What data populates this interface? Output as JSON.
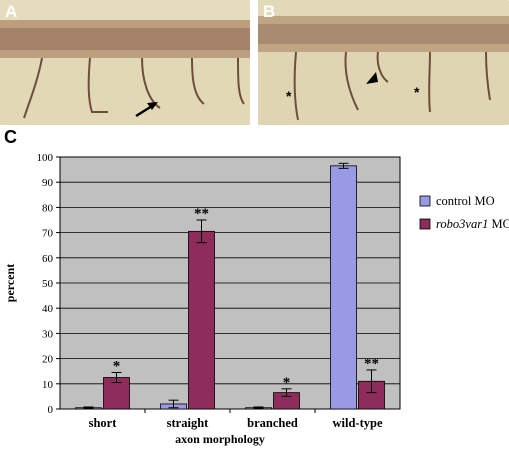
{
  "panels": {
    "a": {
      "letter": "A"
    },
    "b": {
      "letter": "B",
      "annotations": [
        "*",
        "*"
      ]
    },
    "c": {
      "letter": "C"
    }
  },
  "colors": {
    "control": "#9999e6",
    "morphant": "#8e2c5c",
    "plot_background": "#c0c0c0",
    "photo_background": "#dbd1ac"
  },
  "chart_data": {
    "type": "bar",
    "categories": [
      "short",
      "straight",
      "branched",
      "wild-type"
    ],
    "series": [
      {
        "name": "control MO",
        "name_parts": [
          "control MO"
        ],
        "values": [
          0.5,
          2.0,
          0.5,
          96.5
        ],
        "errors": [
          0.3,
          1.5,
          0.3,
          1.0
        ],
        "significance": [
          "",
          "",
          "",
          ""
        ]
      },
      {
        "name": "robo3var1 MO",
        "name_parts": [
          "robo3var1",
          " MO"
        ],
        "values": [
          12.5,
          70.5,
          6.5,
          11.0
        ],
        "errors": [
          2.0,
          4.5,
          1.5,
          4.5
        ],
        "significance": [
          "*",
          "**",
          "*",
          "**"
        ]
      }
    ],
    "xlabel": "axon morphology",
    "ylabel": "percent",
    "ylim": [
      0,
      100
    ],
    "yticks": [
      0,
      10,
      20,
      30,
      40,
      50,
      60,
      70,
      80,
      90,
      100
    ],
    "grid": true,
    "legend": "right"
  }
}
